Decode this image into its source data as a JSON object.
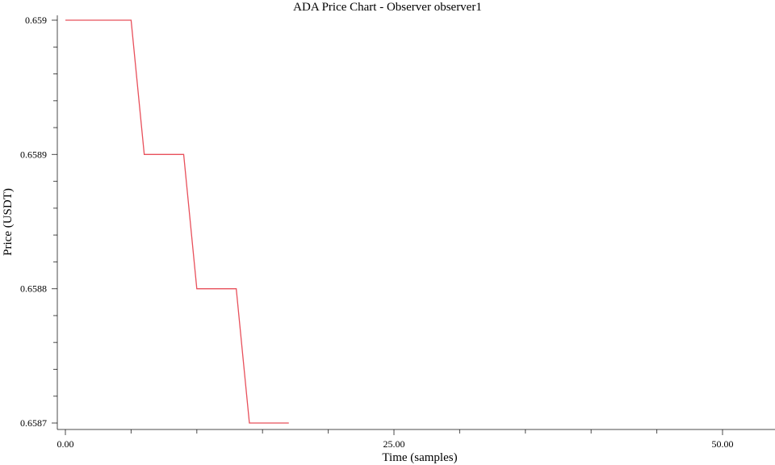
{
  "chart_data": {
    "type": "line",
    "title": "ADA Price Chart - Observer observer1",
    "xlabel": "Time (samples)",
    "ylabel": "Price (USDT)",
    "xlim": [
      0,
      54
    ],
    "ylim": [
      0.6587,
      0.659
    ],
    "x_ticks": [
      0,
      25,
      50
    ],
    "x_tick_labels": [
      "0.00",
      "25.00",
      "50.00"
    ],
    "x_minor_step": 5,
    "y_ticks": [
      0.6587,
      0.6588,
      0.6589,
      0.659
    ],
    "y_tick_labels": [
      "0.6587",
      "0.6588",
      "0.6589",
      "0.659"
    ],
    "y_minor_step": 2e-05,
    "grid": false,
    "series": [
      {
        "color": "#e8505b",
        "x": [
          0,
          5,
          6,
          9,
          10,
          13,
          14,
          17
        ],
        "y": [
          0.659,
          0.659,
          0.6589,
          0.6589,
          0.6588,
          0.6588,
          0.6587,
          0.6587
        ]
      }
    ]
  }
}
